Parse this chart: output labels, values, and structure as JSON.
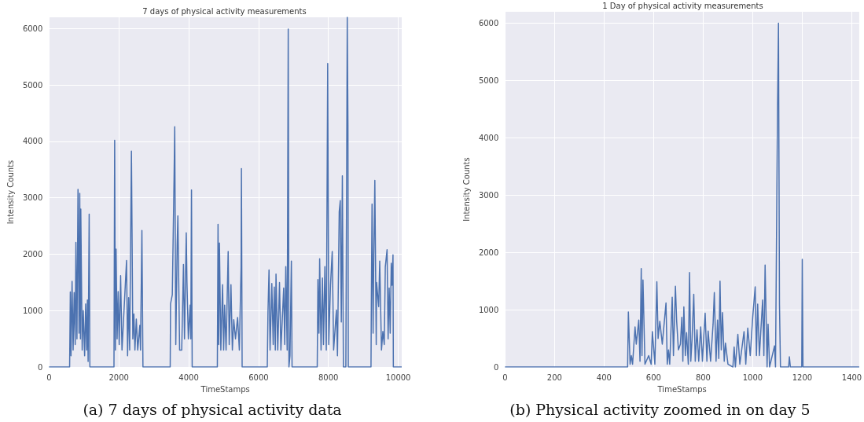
{
  "chart_data": [
    {
      "type": "line",
      "title": "7 days of physical activity measurements",
      "xlabel": "TimeStamps",
      "ylabel": "Intensity Counts",
      "annotations": [
        "(a) 7 days of physical activity data"
      ],
      "color": "#4c72b0",
      "marker": "none",
      "line_style": "solid",
      "grid": true,
      "xlim": [
        0,
        10100
      ],
      "ylim": [
        0,
        6200
      ],
      "xticks": [
        0,
        2000,
        4000,
        6000,
        8000,
        10000
      ],
      "yticks": [
        0,
        1000,
        2000,
        3000,
        4000,
        5000,
        6000
      ],
      "x": [
        0,
        590,
        610,
        630,
        660,
        690,
        720,
        750,
        770,
        800,
        830,
        860,
        880,
        900,
        910,
        950,
        980,
        1020,
        1050,
        1080,
        1100,
        1120,
        1150,
        1170,
        1860,
        1880,
        1900,
        1920,
        1950,
        1980,
        2010,
        2050,
        2090,
        2220,
        2250,
        2280,
        2310,
        2360,
        2400,
        2430,
        2460,
        2500,
        2540,
        2600,
        2620,
        2660,
        2690,
        3470,
        3480,
        3530,
        3580,
        3600,
        3630,
        3670,
        3690,
        3740,
        3800,
        3850,
        3880,
        3930,
        3950,
        3990,
        4040,
        4060,
        4080,
        4100,
        4820,
        4840,
        4860,
        4880,
        4920,
        4970,
        5000,
        5030,
        5070,
        5130,
        5160,
        5210,
        5250,
        5290,
        5340,
        5400,
        5450,
        5500,
        5510,
        5530,
        6250,
        6270,
        6300,
        6330,
        6380,
        6420,
        6450,
        6480,
        6500,
        6550,
        6600,
        6640,
        6720,
        6750,
        6780,
        6820,
        6850,
        6870,
        6900,
        6940,
        6960,
        7680,
        7700,
        7730,
        7750,
        7790,
        7830,
        7860,
        7900,
        7940,
        7980,
        8010,
        8060,
        8110,
        8150,
        8230,
        8260,
        8310,
        8340,
        8370,
        8400,
        8430,
        8500,
        8520,
        8540,
        8560,
        8570,
        9220,
        9230,
        9250,
        9280,
        9300,
        9330,
        9370,
        9380,
        9440,
        9470,
        9520,
        9560,
        9600,
        9630,
        9680,
        9710,
        9740,
        9770,
        9800,
        9820,
        9850,
        9860,
        10100
      ],
      "values": [
        0,
        0,
        1330,
        200,
        1520,
        300,
        1320,
        400,
        2210,
        500,
        3150,
        600,
        3080,
        500,
        2800,
        300,
        1000,
        200,
        1120,
        300,
        1190,
        100,
        2710,
        0,
        0,
        4020,
        300,
        2090,
        500,
        1340,
        400,
        1620,
        300,
        1890,
        200,
        1230,
        300,
        3830,
        500,
        940,
        300,
        850,
        300,
        740,
        300,
        2420,
        0,
        0,
        1120,
        1280,
        3320,
        4260,
        400,
        2180,
        2680,
        300,
        300,
        1820,
        500,
        2380,
        1500,
        500,
        1100,
        500,
        3140,
        0,
        0,
        2530,
        400,
        2200,
        300,
        1460,
        300,
        1100,
        300,
        2050,
        400,
        1460,
        300,
        840,
        500,
        880,
        300,
        1780,
        3520,
        0,
        0,
        970,
        1720,
        300,
        1480,
        400,
        1420,
        300,
        1650,
        300,
        1500,
        300,
        1400,
        400,
        1780,
        300,
        5990,
        0,
        200,
        1880,
        0,
        0,
        1550,
        600,
        1920,
        300,
        1580,
        400,
        1780,
        300,
        5380,
        400,
        1450,
        2050,
        300,
        1010,
        200,
        2750,
        2950,
        800,
        3390,
        0,
        0,
        2950,
        6200,
        4300,
        0,
        0,
        1140,
        2890,
        600,
        1960,
        3310,
        400,
        1500,
        1070,
        1880,
        300,
        630,
        400,
        1780,
        2080,
        500,
        1400,
        600,
        1840,
        1450,
        1990,
        0,
        0
      ]
    },
    {
      "type": "line",
      "title": "1 Day of physical activity measurements",
      "xlabel": "TimeStamps",
      "ylabel": "Intensity Counts",
      "annotations": [
        "(b) Physical activity zoomed in on day 5"
      ],
      "color": "#4c72b0",
      "marker": "none",
      "line_style": "solid",
      "grid": true,
      "xlim": [
        0,
        1430
      ],
      "ylim": [
        0,
        6200
      ],
      "xticks": [
        0,
        200,
        400,
        600,
        800,
        1000,
        1200,
        1400
      ],
      "yticks": [
        0,
        1000,
        2000,
        3000,
        4000,
        5000,
        6000
      ],
      "x": [
        0,
        495,
        498,
        505,
        510,
        515,
        525,
        530,
        540,
        545,
        550,
        553,
        557,
        565,
        580,
        590,
        595,
        605,
        613,
        618,
        625,
        635,
        650,
        655,
        660,
        665,
        675,
        680,
        688,
        693,
        700,
        708,
        714,
        718,
        722,
        728,
        733,
        740,
        745,
        750,
        755,
        762,
        768,
        775,
        782,
        790,
        797,
        803,
        808,
        815,
        820,
        830,
        840,
        845,
        852,
        858,
        863,
        868,
        873,
        878,
        885,
        890,
        900,
        920,
        925,
        930,
        940,
        948,
        965,
        972,
        980,
        990,
        1000,
        1010,
        1015,
        1020,
        1027,
        1040,
        1045,
        1050,
        1058,
        1062,
        1068,
        1088,
        1092,
        1100,
        1104,
        1108,
        1112,
        1145,
        1148,
        1152,
        1198,
        1200,
        1203,
        1430
      ],
      "values": [
        0,
        0,
        960,
        50,
        200,
        50,
        700,
        400,
        820,
        100,
        1720,
        200,
        1520,
        50,
        200,
        50,
        620,
        50,
        1490,
        500,
        800,
        400,
        1120,
        50,
        300,
        50,
        1220,
        200,
        1410,
        800,
        300,
        400,
        870,
        100,
        1050,
        200,
        600,
        50,
        1650,
        100,
        480,
        1270,
        100,
        650,
        100,
        700,
        100,
        580,
        940,
        100,
        630,
        100,
        750,
        1300,
        100,
        820,
        150,
        1500,
        300,
        950,
        100,
        420,
        50,
        0,
        350,
        0,
        570,
        50,
        620,
        50,
        680,
        200,
        870,
        1400,
        200,
        1100,
        200,
        1170,
        200,
        1780,
        0,
        750,
        0,
        370,
        0,
        4450,
        6000,
        1100,
        0,
        0,
        180,
        0,
        0,
        1880,
        0,
        0
      ]
    }
  ]
}
